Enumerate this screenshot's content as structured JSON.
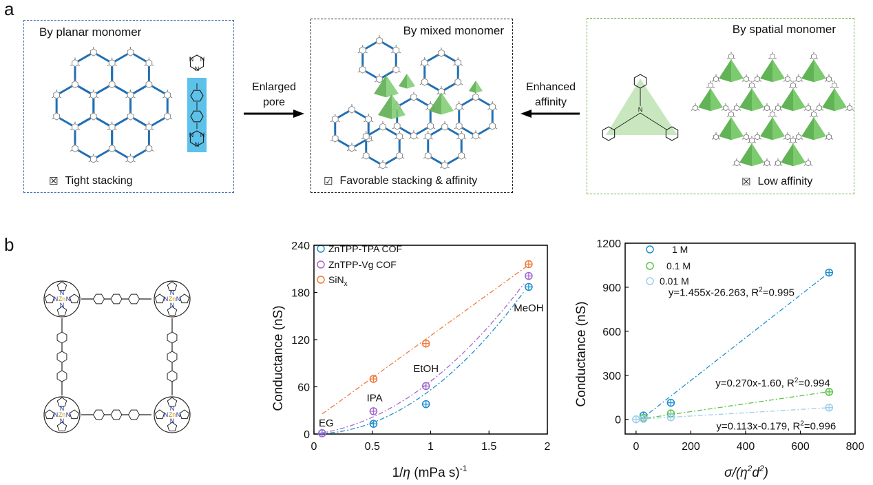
{
  "panel_a": {
    "letter": "a",
    "planar": {
      "title": "By planar monomer",
      "mark": "☒",
      "note": "Tight stacking",
      "border": "#3f6fb5"
    },
    "mixed": {
      "title": "By mixed monomer",
      "mark": "☑",
      "note": "Favorable stacking & affinity",
      "border": "#222222"
    },
    "spatial": {
      "title": "By spatial monomer",
      "mark": "☒",
      "note": "Low affinity",
      "border": "#6bb04a"
    },
    "arrow_left": {
      "line1": "Enlarged",
      "line2": "pore"
    },
    "arrow_right": {
      "line1": "Enhanced",
      "line2": "affinity"
    },
    "molecule_letters": {
      "n": "N",
      "c": "C"
    }
  },
  "panel_b": {
    "letter": "b",
    "metal_label": "Zn"
  },
  "colors": {
    "link_blue": "#1f6fb5",
    "highlight_blue": "#5cc2ea",
    "pyramid_green": "#7ccb6e",
    "tpa": "#1f8fd0",
    "vg": "#a46ad0",
    "sin": "#f07b3c",
    "c1M": "#1f8fd0",
    "c01M": "#5ec24a",
    "c001M": "#9ccfee"
  },
  "chart_data": [
    {
      "type": "scatter",
      "xlabel_prefix": "1/",
      "xlabel_symbol": "η",
      "xlabel_suffix": " (mPa s)",
      "xlabel_sup": "-1",
      "ylabel": "Conductance (nS)",
      "xlim": [
        0,
        2
      ],
      "ylim": [
        0,
        240
      ],
      "xticks": [
        "0",
        "0.5",
        "1",
        "1.5",
        "2"
      ],
      "yticks": [
        "0",
        "60",
        "120",
        "180",
        "240"
      ],
      "xtick_values": [
        0,
        0.5,
        1,
        1.5,
        2
      ],
      "ytick_values": [
        0,
        60,
        120,
        180,
        240
      ],
      "legend": "top-left",
      "series": [
        {
          "name": "ZnTPP-TPA COF",
          "color_key": "tpa",
          "x": [
            0.07,
            0.51,
            0.96,
            1.84
          ],
          "y": [
            1,
            13,
            38,
            187
          ]
        },
        {
          "name": "ZnTPP-Vg COF",
          "color_key": "vg",
          "x": [
            0.07,
            0.51,
            0.96,
            1.84
          ],
          "y": [
            1,
            29,
            61,
            201
          ]
        },
        {
          "name_main": "SiN",
          "name_sub": "x",
          "color_key": "sin",
          "x": [
            0.51,
            0.96,
            1.84
          ],
          "y": [
            70,
            115,
            216
          ]
        }
      ],
      "annotations": [
        {
          "text": "EG",
          "x": 0.07,
          "y": 8
        },
        {
          "text": "IPA",
          "x": 0.52,
          "y": 40
        },
        {
          "text": "EtOH",
          "x": 0.96,
          "y": 77
        },
        {
          "text": "MeOH",
          "x": 1.84,
          "y": 154
        }
      ]
    },
    {
      "type": "scatter",
      "xlabel_prefix": "σ/(η",
      "xlabel_sup1": "2",
      "xlabel_mid": "d",
      "xlabel_sup2": "2",
      "xlabel_suffix": ")",
      "ylabel": "Conductance (nS)",
      "xlim": [
        -40,
        800
      ],
      "ylim": [
        -100,
        1200
      ],
      "xticks": [
        "0",
        "200",
        "400",
        "600",
        "800"
      ],
      "yticks": [
        "0",
        "300",
        "600",
        "900",
        "1200"
      ],
      "xtick_values": [
        0,
        200,
        400,
        600,
        800
      ],
      "ytick_values": [
        0,
        300,
        600,
        900,
        1200
      ],
      "legend": "top-left",
      "series": [
        {
          "name": "1 M",
          "color_key": "c1M",
          "x": [
            27,
            127,
            705
          ],
          "y": [
            26,
            113,
            1000
          ],
          "fit_text": "y=1.455x-26.263, R",
          "fit_sup": "2",
          "fit_tail": "=0.995",
          "fit_label_x": 118,
          "fit_label_y": 840
        },
        {
          "name": "0.1 M",
          "color_key": "c01M",
          "x": [
            27,
            127,
            705
          ],
          "y": [
            10,
            40,
            187
          ],
          "fit_text": "y=0.270x-1.60, R",
          "fit_sup": "2",
          "fit_tail": "=0.994",
          "fit_label_x": 290,
          "fit_label_y": 225
        },
        {
          "name": "0.01 M",
          "color_key": "c001M",
          "x": [
            0,
            27,
            127,
            705
          ],
          "y": [
            0,
            3,
            14,
            80
          ],
          "fit_text": "y=0.113x-0.179, R",
          "fit_sup": "2",
          "fit_tail": "=0.996",
          "fit_label_x": 293,
          "fit_label_y": -70
        }
      ]
    }
  ]
}
